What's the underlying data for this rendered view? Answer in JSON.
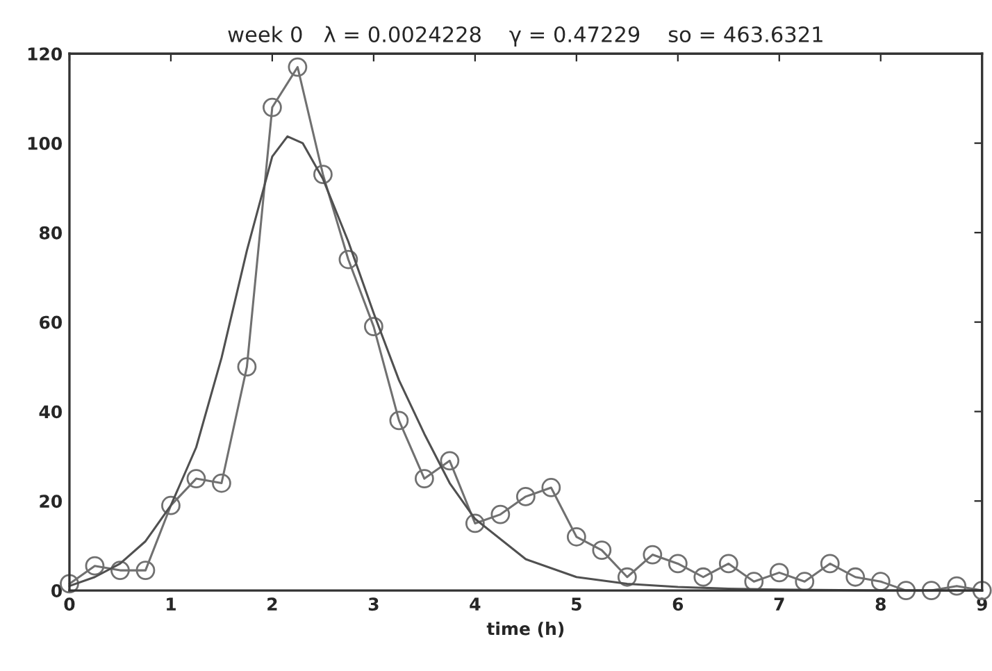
{
  "chart_data": {
    "type": "line",
    "title": "week 0   λ = 0.0024228    γ = 0.47229    so = 463.6321",
    "xlabel": "time (h)",
    "xlim": [
      0,
      9
    ],
    "xticks": [
      0,
      1,
      2,
      3,
      4,
      5,
      6,
      7,
      8,
      9
    ],
    "ylim": [
      0,
      120
    ],
    "yticks": [
      0,
      20,
      40,
      60,
      80,
      100,
      120
    ],
    "grid": false,
    "series": [
      {
        "color": "#707070",
        "marker": "circle",
        "x": [
          0,
          0.25,
          0.5,
          0.75,
          1,
          1.25,
          1.5,
          1.75,
          2,
          2.25,
          2.5,
          2.75,
          3,
          3.25,
          3.5,
          3.75,
          4,
          4.25,
          4.5,
          4.75,
          5,
          5.25,
          5.5,
          5.75,
          6,
          6.25,
          6.5,
          6.75,
          7,
          7.25,
          7.5,
          7.75,
          8,
          8.25,
          8.5,
          8.75,
          9
        ],
        "values": [
          1.5,
          5.5,
          4.5,
          4.5,
          19,
          25,
          24,
          50,
          108,
          117,
          93,
          74,
          59,
          38,
          25,
          29,
          15,
          17,
          21,
          23,
          12,
          9,
          3,
          8,
          6,
          3,
          6,
          2,
          4,
          2,
          6,
          3,
          2,
          0,
          0,
          1,
          0
        ]
      },
      {
        "color": "#505050",
        "marker": "none",
        "x": [
          0,
          0.25,
          0.5,
          0.75,
          1,
          1.25,
          1.5,
          1.75,
          2,
          2.15,
          2.3,
          2.5,
          2.75,
          3,
          3.25,
          3.5,
          3.75,
          4,
          4.5,
          5,
          5.5,
          6,
          6.5,
          7,
          8,
          9
        ],
        "values": [
          1,
          3,
          6,
          11,
          19,
          32,
          52,
          76,
          97,
          101.5,
          100,
          92,
          78,
          62,
          47,
          35,
          24,
          16,
          7,
          3,
          1.5,
          0.8,
          0.4,
          0.2,
          0,
          0
        ]
      }
    ]
  }
}
